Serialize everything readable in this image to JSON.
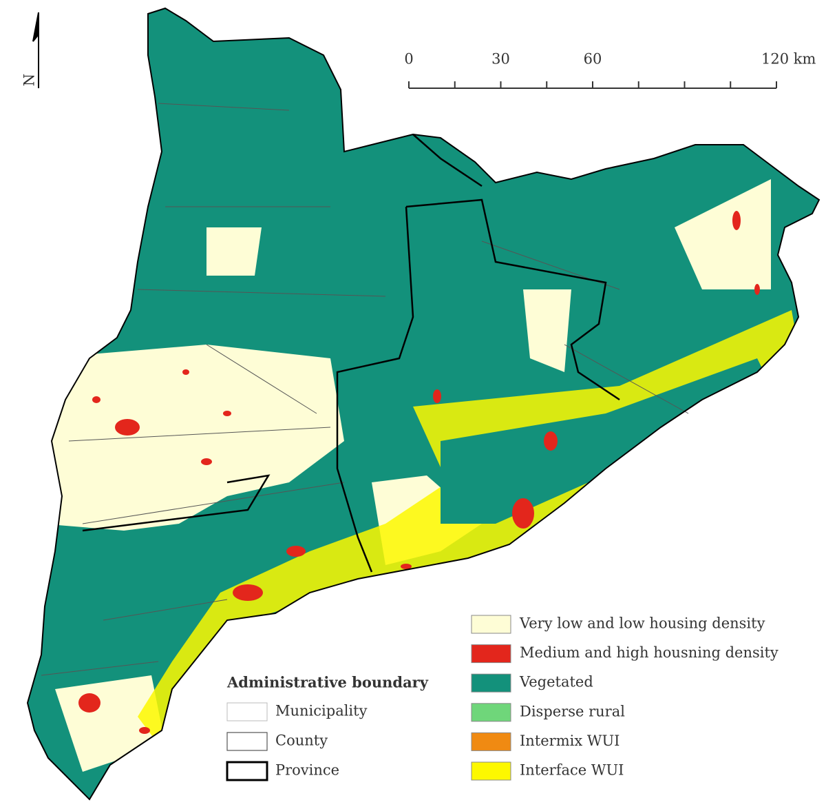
{
  "map": {
    "north_label": "N",
    "scale_bar": {
      "lim": [
        0,
        120
      ],
      "ticks": [
        0,
        15,
        30,
        45,
        60,
        75,
        90,
        105,
        120
      ],
      "labels": [
        0,
        30,
        60,
        {
          "value": 120,
          "label": "120 km"
        }
      ]
    },
    "legend_boundaries": {
      "title": "Administrative boundary",
      "items": [
        {
          "label": "Municipality"
        },
        {
          "label": "County"
        },
        {
          "label": "Province"
        }
      ]
    },
    "legend_classes": [
      {
        "label": "Very low and low housing density",
        "color": "#fefdd6"
      },
      {
        "label": "Medium and high housning density",
        "color": "#e3261c"
      },
      {
        "label": "Vegetated",
        "color": "#13917b"
      },
      {
        "label": "Disperse rural",
        "color": "#6fd67a"
      },
      {
        "label": "Intermix WUI",
        "color": "#f08a12"
      },
      {
        "label": "Interface WUI",
        "color": "#fdf800"
      }
    ]
  }
}
